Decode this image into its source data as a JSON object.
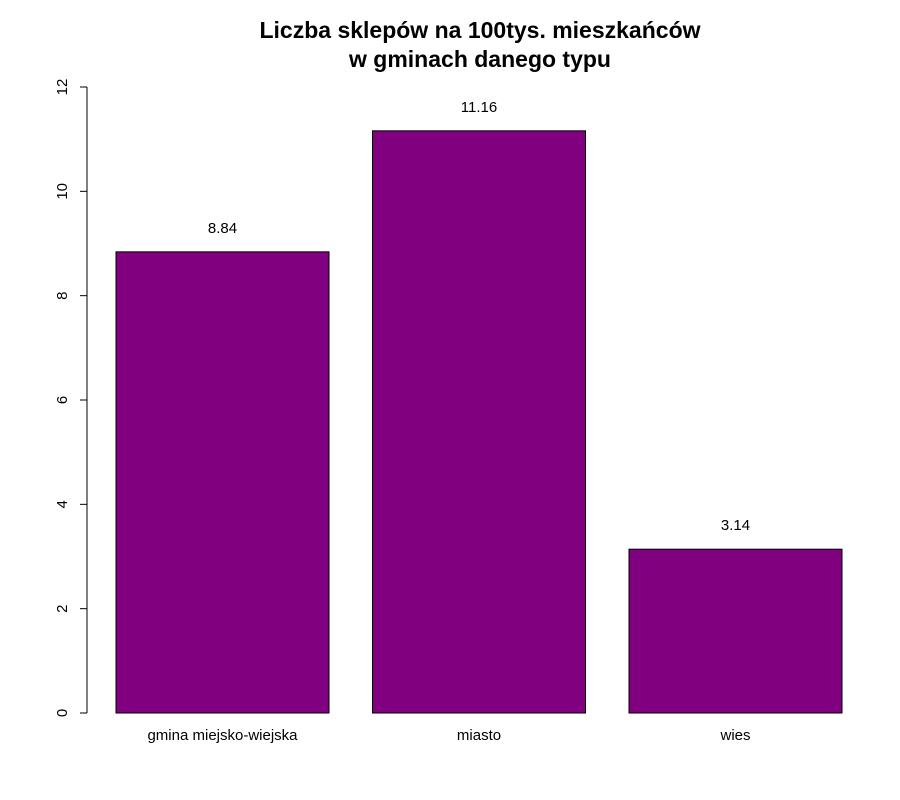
{
  "chart_data": {
    "type": "bar",
    "title": [
      "Liczba sklepów na 100tys. mieszkańców",
      "w gminach danego typu"
    ],
    "categories": [
      "gmina miejsko-wiejska",
      "miasto",
      "wies"
    ],
    "values": [
      8.84,
      11.16,
      3.14
    ],
    "value_labels": [
      "8.84",
      "11.16",
      "3.14"
    ],
    "ylim": [
      0,
      12
    ],
    "yticks": [
      0,
      2,
      4,
      6,
      8,
      10,
      12
    ],
    "xlabel": "",
    "ylabel": "",
    "grid": false,
    "bar_color": "#800080",
    "bar_border": "#000000"
  }
}
